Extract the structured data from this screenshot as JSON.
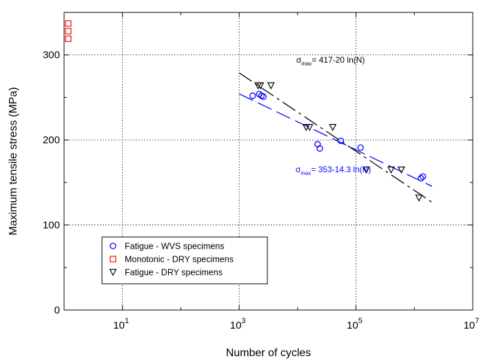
{
  "chart_data": {
    "type": "scatter",
    "x_scale": "log",
    "xlim": [
      1,
      10000000
    ],
    "ylim": [
      0,
      350
    ],
    "xlabel": "Number of cycles",
    "ylabel": "Maximum tensile stress (MPa)",
    "y_ticks": [
      0,
      100,
      200,
      300
    ],
    "y_tick_labels": [
      "0",
      "100",
      "200",
      "300"
    ],
    "x_ticks": [
      10,
      1000,
      100000,
      10000000
    ],
    "x_tick_labels": [
      {
        "base": "10",
        "exp": "1"
      },
      {
        "base": "10",
        "exp": "3"
      },
      {
        "base": "10",
        "exp": "5"
      },
      {
        "base": "10",
        "exp": "7"
      }
    ],
    "grid": true,
    "legend_position": "bottom-left",
    "series": [
      {
        "name": "Fatigue - WVS specimens",
        "marker": "circle",
        "color": "#0000ff",
        "points": [
          {
            "x": 1700,
            "y": 252
          },
          {
            "x": 2200,
            "y": 254
          },
          {
            "x": 2400,
            "y": 252
          },
          {
            "x": 2600,
            "y": 251
          },
          {
            "x": 22000,
            "y": 195
          },
          {
            "x": 24000,
            "y": 190
          },
          {
            "x": 55000,
            "y": 199
          },
          {
            "x": 120000,
            "y": 191
          },
          {
            "x": 1300000,
            "y": 155
          },
          {
            "x": 1400000,
            "y": 157
          }
        ]
      },
      {
        "name": "Monotonic - DRY specimens",
        "marker": "square",
        "color": "#ff0000",
        "points": [
          {
            "x": 1,
            "y": 337
          },
          {
            "x": 1,
            "y": 328
          },
          {
            "x": 1,
            "y": 319
          }
        ]
      },
      {
        "name": "Fatigue - DRY specimens",
        "marker": "triangle-down",
        "color": "#000000",
        "points": [
          {
            "x": 2100,
            "y": 264
          },
          {
            "x": 2300,
            "y": 264
          },
          {
            "x": 3500,
            "y": 264
          },
          {
            "x": 14000,
            "y": 215
          },
          {
            "x": 16000,
            "y": 215
          },
          {
            "x": 40000,
            "y": 215
          },
          {
            "x": 150000,
            "y": 165
          },
          {
            "x": 400000,
            "y": 165
          },
          {
            "x": 600000,
            "y": 165
          },
          {
            "x": 1200000,
            "y": 132
          }
        ]
      }
    ],
    "fit_lines": [
      {
        "color": "#000000",
        "style": "long-dash-dot",
        "a": 417,
        "b": 20,
        "x_from": 1000,
        "x_to": 2000000
      },
      {
        "color": "#0000ff",
        "style": "long-dash",
        "a": 353,
        "b": 14.3,
        "x_from": 1000,
        "x_to": 2000000
      }
    ],
    "annotations": [
      {
        "color": "#000000",
        "sym": "σ",
        "sub": "max",
        "text": "= 417-20 ln(N)",
        "at_x": 10000,
        "at_y": 291
      },
      {
        "color": "#0000ff",
        "sym": "σ",
        "sub": "max",
        "text": "= 353-14.3 ln(N)",
        "at_x": 10000,
        "at_y": 162
      }
    ]
  }
}
